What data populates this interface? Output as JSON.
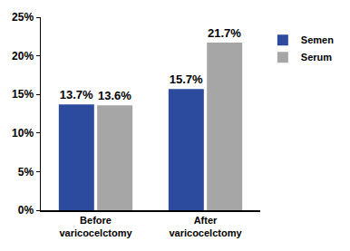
{
  "chart_data": {
    "type": "bar",
    "categories": [
      "Before varicocelctomy",
      "After varicocelctomy"
    ],
    "series": [
      {
        "name": "Semen",
        "color": "#2d4b9e",
        "values": [
          13.7,
          15.7
        ],
        "value_labels": [
          "13.7%",
          "15.7%"
        ]
      },
      {
        "name": "Serum",
        "color": "#a6a6a6",
        "values": [
          13.6,
          21.7
        ],
        "value_labels": [
          "13.6%",
          "21.7%"
        ]
      }
    ],
    "ylim": [
      0,
      25
    ],
    "yticks": [
      {
        "value": 0,
        "label": "0%"
      },
      {
        "value": 5,
        "label": "5%"
      },
      {
        "value": 10,
        "label": "10%"
      },
      {
        "value": 15,
        "label": "15%"
      },
      {
        "value": 20,
        "label": "20%"
      },
      {
        "value": 25,
        "label": "25%"
      }
    ],
    "grid": false,
    "legend": "top right",
    "data_labels": true
  }
}
